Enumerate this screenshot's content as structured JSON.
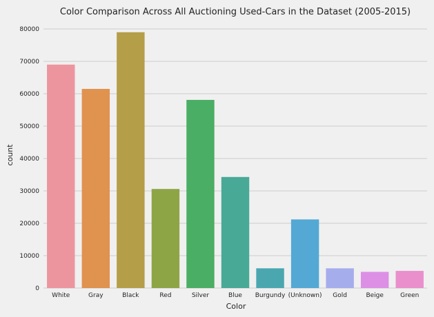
{
  "chart_data": {
    "type": "bar",
    "title": "Color Comparison Across All Auctioning Used-Cars in the Dataset (2005-2015)",
    "xlabel": "Color",
    "ylabel": "count",
    "categories": [
      "White",
      "Gray",
      "Black",
      "Red",
      "Silver",
      "Blue",
      "Burgundy",
      "(Unknown)",
      "Gold",
      "Beige",
      "Green"
    ],
    "values": [
      69000,
      61500,
      79000,
      30600,
      58100,
      34300,
      6100,
      21200,
      6100,
      5000,
      5300
    ],
    "colors": [
      "#ec959f",
      "#e0924f",
      "#b49e48",
      "#8ea546",
      "#4aae64",
      "#48a997",
      "#4aa7b0",
      "#53a9d4",
      "#a6adec",
      "#dd8fe6",
      "#ea8fcc"
    ],
    "ylim": [
      0,
      81500
    ],
    "yticks": [
      0,
      10000,
      20000,
      30000,
      40000,
      50000,
      60000,
      70000,
      80000
    ],
    "grid": true,
    "legend": "none"
  }
}
